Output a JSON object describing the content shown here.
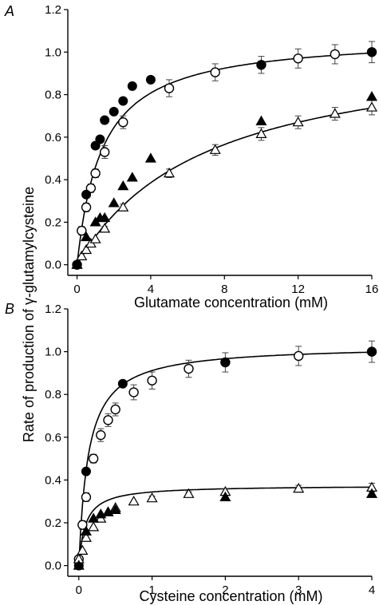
{
  "ylabel": "Rate of production of γ-glutamylcysteine",
  "chart_data": [
    {
      "panel_label": "A",
      "type": "scatter",
      "xlabel": "Glutamate concentration (mM)",
      "xlim": [
        -0.5,
        16
      ],
      "ylim": [
        -0.05,
        1.2
      ],
      "xticks": [
        0,
        4,
        8,
        12,
        16
      ],
      "yticks": [
        0.0,
        0.2,
        0.4,
        0.6,
        0.8,
        1.0,
        1.2
      ],
      "ytick_labels": [
        "0.0",
        "0.2",
        "0.4",
        "0.6",
        "0.8",
        "1.0",
        "1.2"
      ],
      "grid": false,
      "series": [
        {
          "marker": "open-circle",
          "x": [
            0,
            0.25,
            0.5,
            0.75,
            1,
            1.5,
            2.5,
            5,
            7.5,
            10,
            12,
            14,
            16
          ],
          "y": [
            0.0,
            0.16,
            0.27,
            0.36,
            0.43,
            0.53,
            0.67,
            0.83,
            0.905,
            0.94,
            0.97,
            0.99,
            1.0
          ],
          "err": [
            0,
            0.02,
            0.02,
            0.02,
            0.02,
            0.03,
            0.03,
            0.04,
            0.04,
            0.04,
            0.045,
            0.045,
            0.05
          ]
        },
        {
          "marker": "filled-circle",
          "x": [
            0,
            0.5,
            1,
            1.25,
            1.5,
            2,
            2.5,
            3,
            4,
            10,
            16
          ],
          "y": [
            0.0,
            0.33,
            0.56,
            0.59,
            0.68,
            0.72,
            0.77,
            0.84,
            0.87,
            0.94,
            1.0
          ]
        },
        {
          "marker": "open-triangle",
          "x": [
            0,
            0.25,
            0.5,
            0.75,
            1,
            1.5,
            2.5,
            5,
            7.5,
            10,
            12,
            14,
            16
          ],
          "y": [
            0.0,
            0.04,
            0.07,
            0.1,
            0.12,
            0.17,
            0.27,
            0.43,
            0.54,
            0.615,
            0.67,
            0.71,
            0.74
          ],
          "err": [
            0,
            0,
            0,
            0,
            0,
            0.01,
            0.015,
            0.02,
            0.025,
            0.03,
            0.03,
            0.03,
            0.035
          ]
        },
        {
          "marker": "filled-triangle",
          "x": [
            0,
            0.5,
            1,
            1.25,
            1.5,
            2,
            2.5,
            3,
            4,
            10,
            16
          ],
          "y": [
            0.0,
            0.13,
            0.2,
            0.22,
            0.22,
            0.29,
            0.37,
            0.41,
            0.5,
            0.675,
            0.79
          ]
        }
      ],
      "fit_curves": [
        {
          "vmax": 1.08,
          "km": 1.35
        },
        {
          "vmax": 1.06,
          "km": 7.0
        }
      ]
    },
    {
      "panel_label": "B",
      "type": "scatter",
      "xlabel": "Cysteine concentration (mM)",
      "xlim": [
        -0.15,
        4
      ],
      "ylim": [
        -0.05,
        1.2
      ],
      "xticks": [
        0,
        1,
        2,
        3,
        4
      ],
      "yticks": [
        0.0,
        0.2,
        0.4,
        0.6,
        0.8,
        1.0,
        1.2
      ],
      "ytick_labels": [
        "0.0",
        "0.2",
        "0.4",
        "0.6",
        "0.8",
        "1.0",
        "1.2"
      ],
      "grid": false,
      "series": [
        {
          "marker": "open-circle",
          "x": [
            0,
            0.05,
            0.1,
            0.2,
            0.3,
            0.4,
            0.5,
            0.75,
            1.0,
            1.5,
            2,
            3,
            4
          ],
          "y": [
            0.03,
            0.19,
            0.32,
            0.5,
            0.61,
            0.68,
            0.73,
            0.81,
            0.865,
            0.92,
            0.95,
            0.98,
            1.0
          ],
          "err": [
            0,
            0.02,
            0.02,
            0.02,
            0.03,
            0.03,
            0.03,
            0.035,
            0.04,
            0.04,
            0.045,
            0.045,
            0.05
          ]
        },
        {
          "marker": "filled-circle",
          "x": [
            0,
            0.1,
            0.6,
            2,
            4
          ],
          "y": [
            0.0,
            0.44,
            0.85,
            0.95,
            1.0
          ]
        },
        {
          "marker": "open-triangle",
          "x": [
            0,
            0.05,
            0.1,
            0.2,
            0.3,
            0.4,
            0.5,
            0.75,
            1.0,
            1.5,
            2,
            3,
            4
          ],
          "y": [
            0.03,
            0.07,
            0.13,
            0.18,
            0.22,
            0.25,
            0.27,
            0.3,
            0.315,
            0.335,
            0.345,
            0.36,
            0.365
          ],
          "err": [
            0,
            0,
            0,
            0,
            0,
            0,
            0,
            0,
            0.01,
            0.01,
            0.015,
            0.015,
            0.02
          ]
        },
        {
          "marker": "filled-triangle",
          "x": [
            0,
            0.1,
            0.2,
            0.3,
            0.4,
            0.5,
            2,
            4
          ],
          "y": [
            0.0,
            0.16,
            0.22,
            0.24,
            0.25,
            0.26,
            0.32,
            0.335
          ]
        }
      ],
      "fit_curves": [
        {
          "vmax": 1.03,
          "km": 0.13
        },
        {
          "vmax": 0.375,
          "km": 0.09
        }
      ]
    }
  ]
}
